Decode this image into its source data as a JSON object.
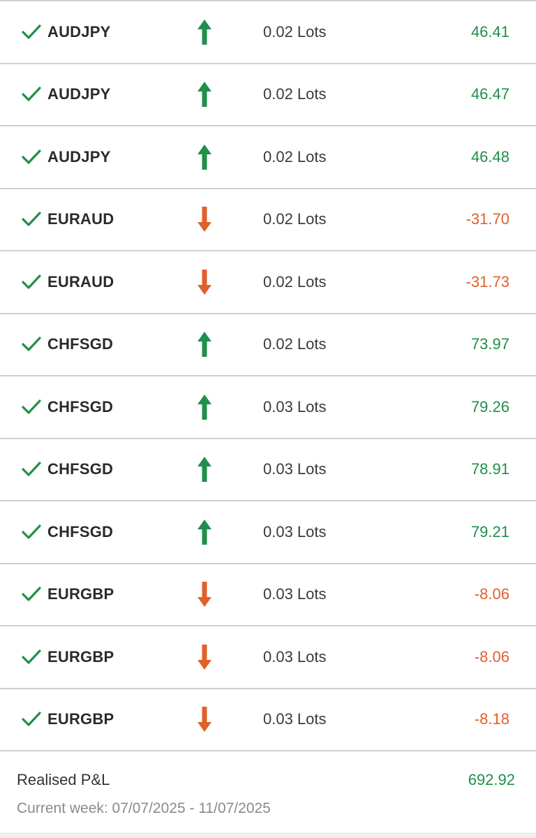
{
  "colors": {
    "profit": "#1f8f4a",
    "loss": "#e0602a",
    "check": "#1f8f4a"
  },
  "trades": [
    {
      "symbol": "AUDJPY",
      "direction": "buy",
      "lots": "0.02 Lots",
      "pnl": "46.41"
    },
    {
      "symbol": "AUDJPY",
      "direction": "buy",
      "lots": "0.02 Lots",
      "pnl": "46.47"
    },
    {
      "symbol": "AUDJPY",
      "direction": "buy",
      "lots": "0.02 Lots",
      "pnl": "46.48"
    },
    {
      "symbol": "EURAUD",
      "direction": "sell",
      "lots": "0.02 Lots",
      "pnl": "-31.70"
    },
    {
      "symbol": "EURAUD",
      "direction": "sell",
      "lots": "0.02 Lots",
      "pnl": "-31.73"
    },
    {
      "symbol": "CHFSGD",
      "direction": "buy",
      "lots": "0.02 Lots",
      "pnl": "73.97"
    },
    {
      "symbol": "CHFSGD",
      "direction": "buy",
      "lots": "0.03 Lots",
      "pnl": "79.26"
    },
    {
      "symbol": "CHFSGD",
      "direction": "buy",
      "lots": "0.03 Lots",
      "pnl": "78.91"
    },
    {
      "symbol": "CHFSGD",
      "direction": "buy",
      "lots": "0.03 Lots",
      "pnl": "79.21"
    },
    {
      "symbol": "EURGBP",
      "direction": "sell",
      "lots": "0.03 Lots",
      "pnl": "-8.06"
    },
    {
      "symbol": "EURGBP",
      "direction": "sell",
      "lots": "0.03 Lots",
      "pnl": "-8.06"
    },
    {
      "symbol": "EURGBP",
      "direction": "sell",
      "lots": "0.03 Lots",
      "pnl": "-8.18"
    }
  ],
  "summary": {
    "label": "Realised P&L",
    "value": "692.92",
    "week_range": "Current week: 07/07/2025 - 11/07/2025"
  }
}
